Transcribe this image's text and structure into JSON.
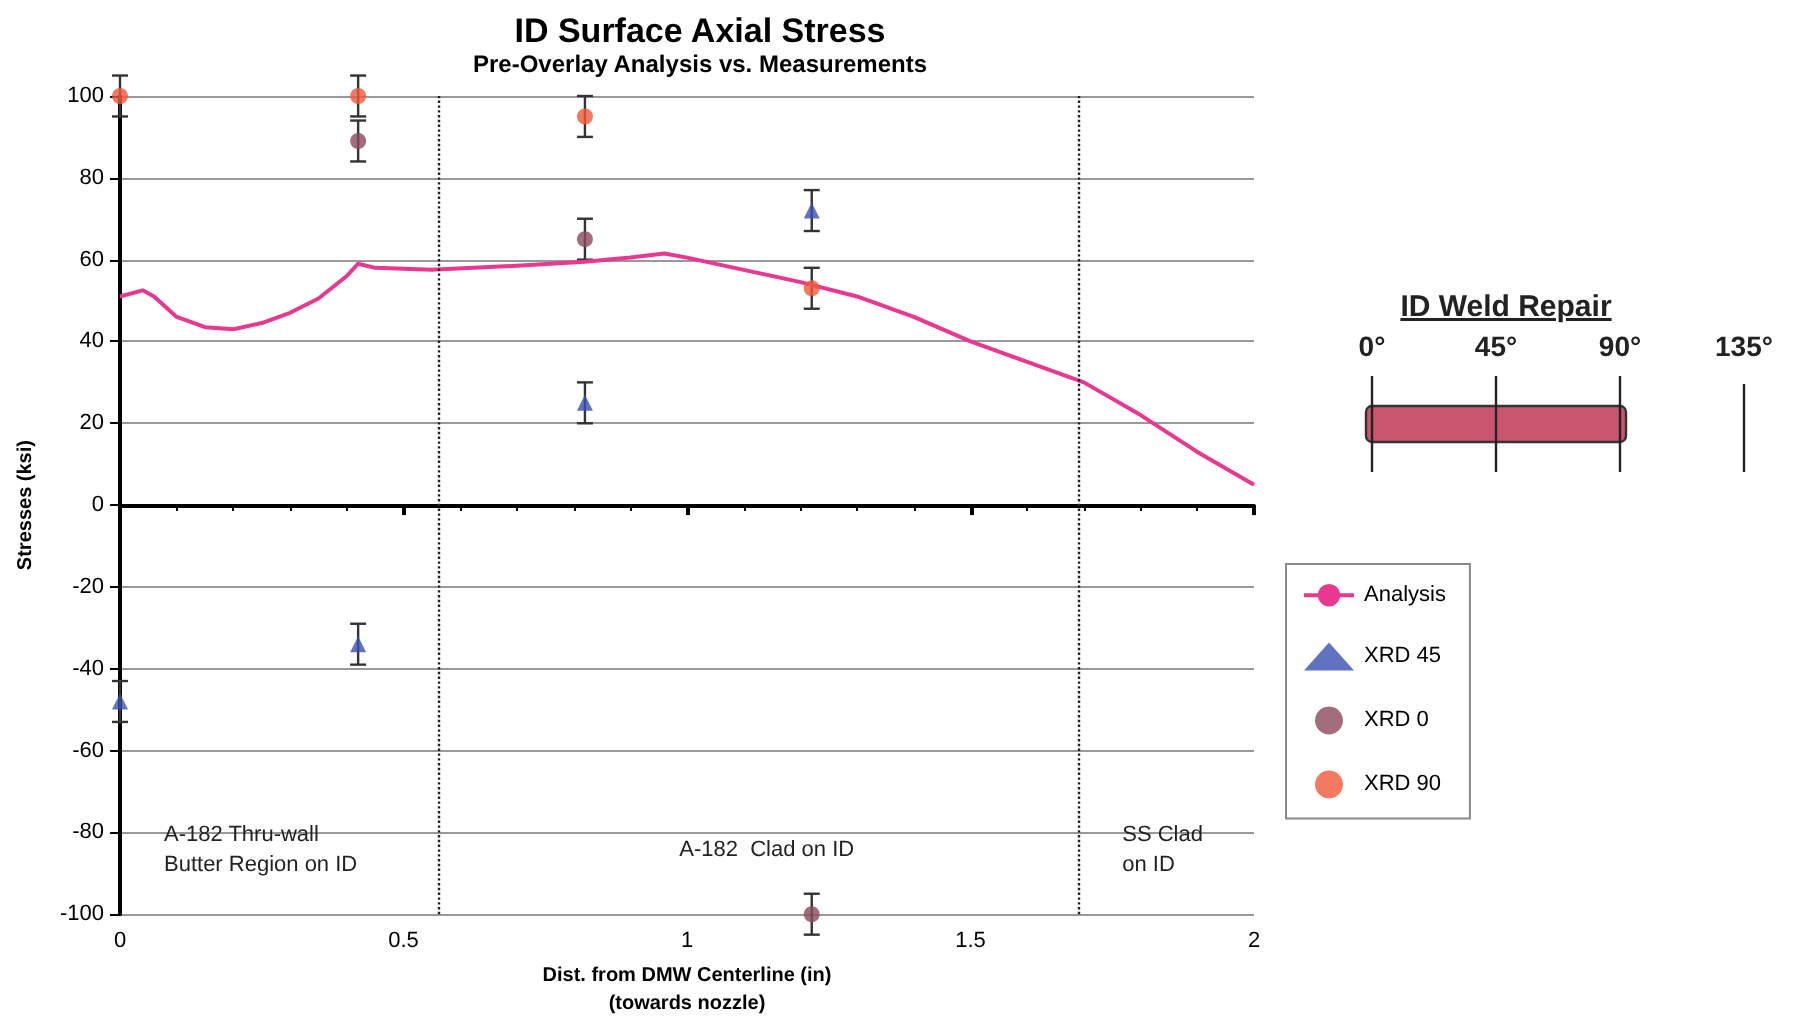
{
  "chart_data": {
    "type": "scatter",
    "title": "ID Surface Axial Stress",
    "subtitle": "Pre-Overlay Analysis vs. Measurements",
    "xlabel": "Dist. from DMW Centerline (in)\n(towards nozzle)",
    "ylabel": "Stresses (ksi)",
    "xlim": [
      0,
      2
    ],
    "xticks": [
      0,
      0.5,
      1,
      1.5,
      2
    ],
    "ylim": [
      -100,
      100
    ],
    "yticks": [
      -100,
      -80,
      -60,
      -40,
      -20,
      0,
      20,
      40,
      60,
      80,
      100
    ],
    "grid": "y",
    "legend": "right",
    "series": [
      {
        "name": "Analysis",
        "type": "line",
        "color": "#e8388f",
        "marker": "none",
        "line_style": "solid",
        "x": [
          0,
          0.04,
          0.06,
          0.1,
          0.15,
          0.2,
          0.25,
          0.3,
          0.35,
          0.4,
          0.42,
          0.45,
          0.55,
          0.7,
          0.82,
          0.9,
          0.96,
          1.0,
          1.1,
          1.2,
          1.3,
          1.4,
          1.5,
          1.6,
          1.7,
          1.8,
          1.9,
          2.0
        ],
        "values": [
          51,
          52.5,
          51,
          46,
          43.5,
          43,
          44.5,
          47,
          50.5,
          56,
          59,
          58,
          57.5,
          58.5,
          59.5,
          60.5,
          61.5,
          60.5,
          57.5,
          54.5,
          51,
          46,
          40,
          35,
          30,
          22,
          13,
          5
        ]
      },
      {
        "name": "XRD 45",
        "color": "#3a4fb0",
        "marker": "triangle",
        "x": [
          0,
          0.42,
          0.82,
          1.22
        ],
        "values": [
          -48,
          -34,
          25,
          72
        ],
        "errors": [
          5,
          5,
          5,
          5
        ]
      },
      {
        "name": "XRD 0",
        "color": "#8b4a5a",
        "marker": "circle",
        "x": [
          0.42,
          0.82,
          1.22
        ],
        "values": [
          89,
          65,
          -100
        ],
        "errors": [
          5,
          5,
          5
        ]
      },
      {
        "name": "XRD 90",
        "color": "#f0583a",
        "marker": "circle",
        "x": [
          0,
          0.42,
          0.82,
          1.22
        ],
        "values": [
          100,
          100,
          95,
          53
        ],
        "errors": [
          5,
          5,
          5,
          5
        ]
      }
    ],
    "ref_lines": [
      {
        "axis": "x",
        "value": 0.565,
        "line_style": "dotted",
        "color": "#222222"
      },
      {
        "axis": "x",
        "value": 1.69,
        "line_style": "dotted",
        "color": "#222222"
      }
    ],
    "annotations": [
      "A-182 Thru-wall\nButter Region on ID",
      "A-182  Clad on ID",
      "SS Clad\non ID",
      "ID Weld Repair",
      "0°",
      "45°",
      "90°",
      "135°"
    ]
  }
}
